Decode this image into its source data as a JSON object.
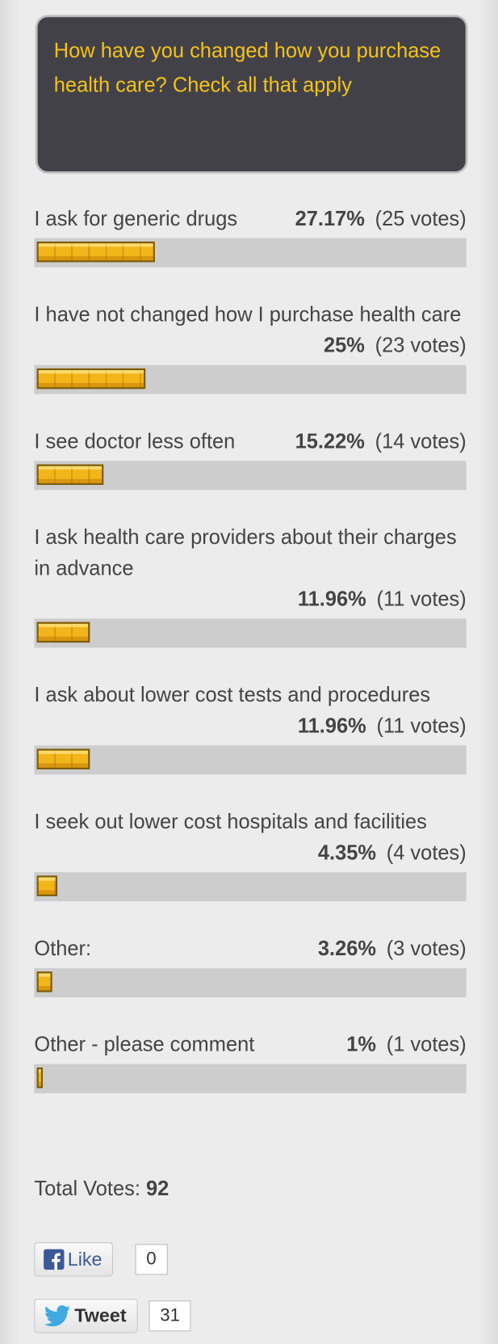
{
  "question": "How have you changed how you purchase health care? Check all that apply",
  "options": [
    {
      "label": "I ask for generic drugs",
      "percent": {
        "value": 27.17,
        "label": "27.17%"
      },
      "votes": "(25 votes)"
    },
    {
      "label": "I have not changed how I purchase health care",
      "percent": {
        "value": 25,
        "label": "25%"
      },
      "votes": "(23 votes)"
    },
    {
      "label": "I see doctor less often",
      "percent": {
        "value": 15.22,
        "label": "15.22%"
      },
      "votes": "(14 votes)"
    },
    {
      "label": "I ask health care providers about their charges in advance",
      "percent": {
        "value": 11.96,
        "label": "11.96%"
      },
      "votes": "(11 votes)"
    },
    {
      "label": "I ask about lower cost tests and procedures",
      "percent": {
        "value": 11.96,
        "label": "11.96%"
      },
      "votes": "(11 votes)"
    },
    {
      "label": "I seek out lower cost hospitals and facilities",
      "percent": {
        "value": 4.35,
        "label": "4.35%"
      },
      "votes": "(4 votes)"
    },
    {
      "label": "Other:",
      "percent": {
        "value": 3.26,
        "label": "3.26%"
      },
      "votes": "(3 votes)"
    },
    {
      "label": "Other - please comment",
      "percent": {
        "value": 1,
        "label": "1%"
      },
      "votes": "(1 votes)"
    }
  ],
  "total": {
    "label": "Total Votes:",
    "value": "92"
  },
  "like": {
    "label": "Like",
    "count": "0"
  },
  "tweet": {
    "label": "Tweet",
    "count": "31"
  }
}
